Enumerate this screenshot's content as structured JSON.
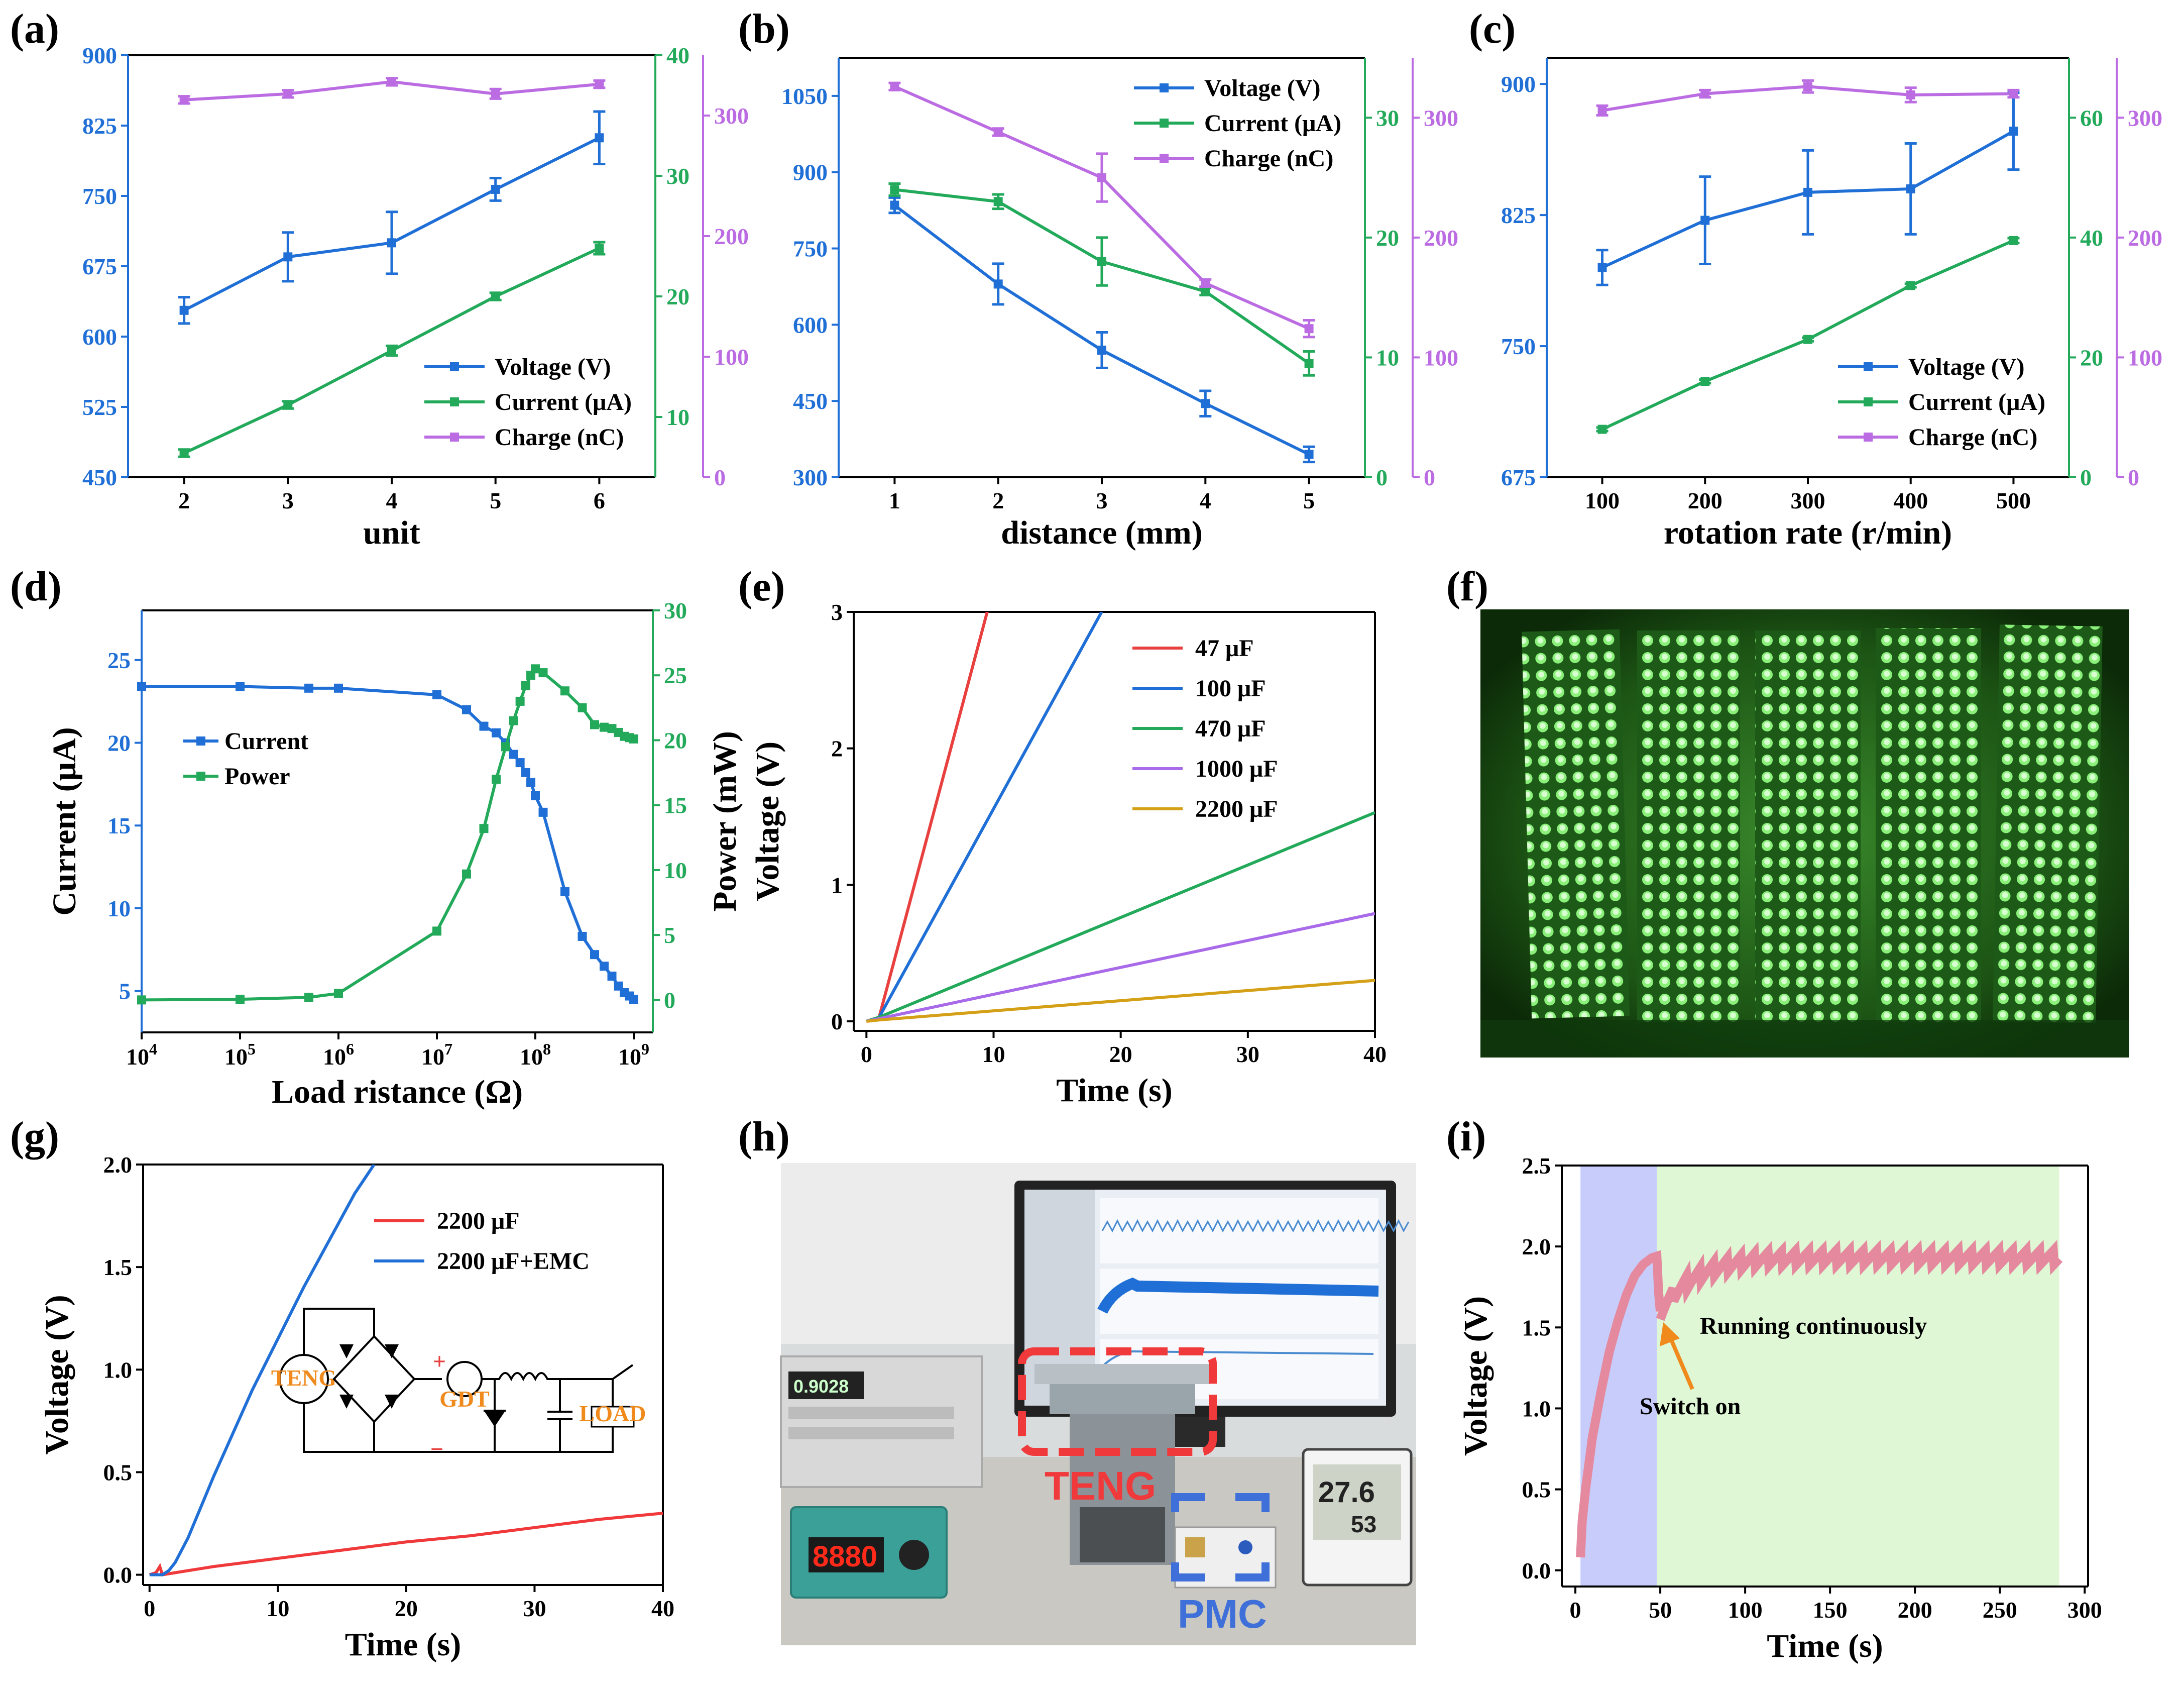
{
  "colors": {
    "voltage": "#1f6fd6",
    "current": "#22a95a",
    "charge": "#bb6ce2",
    "c47": "#e8403e",
    "c100": "#1f6fd6",
    "c470": "#22a95a",
    "c1000": "#a86ae8",
    "c2200": "#d4a017",
    "red": "#f0393a",
    "pink": "#e4899e",
    "shade_blue": "#c8ccfb",
    "shade_green": "#dff7d4",
    "orange": "#f08a1c"
  },
  "chart_data": [
    {
      "panel": "(a)",
      "type": "line",
      "xlabel": "unit",
      "x": [
        2,
        3,
        4,
        5,
        6
      ],
      "xticks": [
        2,
        3,
        4,
        5,
        6
      ],
      "axes": [
        {
          "side": "left",
          "min": 450,
          "max": 900,
          "ticks": [
            450,
            525,
            600,
            675,
            750,
            825,
            900
          ],
          "color": "voltage"
        },
        {
          "side": "right",
          "min": 5,
          "max": 40,
          "ticks": [
            10,
            20,
            30,
            40
          ],
          "color": "current"
        },
        {
          "side": "right2",
          "min": 0,
          "max": 350,
          "ticks": [
            0,
            100,
            200,
            300
          ],
          "color": "charge"
        }
      ],
      "series": [
        {
          "name": "Voltage (V)",
          "axis": 0,
          "color": "voltage",
          "values": [
            628,
            685,
            700,
            757,
            812
          ],
          "errors": [
            14,
            26,
            33,
            12,
            28
          ]
        },
        {
          "name": "Current (μA)",
          "axis": 1,
          "color": "current",
          "values": [
            7.0,
            11.0,
            15.5,
            20.0,
            24.0
          ],
          "errors": [
            0.3,
            0.3,
            0.4,
            0.3,
            0.5
          ]
        },
        {
          "name": "Charge (nC)",
          "axis": 2,
          "color": "charge",
          "values": [
            313,
            318,
            328,
            318,
            326
          ],
          "errors": [
            3,
            3,
            3,
            4,
            3
          ]
        }
      ],
      "legend": "bottom-right"
    },
    {
      "panel": "(b)",
      "type": "line",
      "xlabel": "distance (mm)",
      "x": [
        1,
        2,
        3,
        4,
        5
      ],
      "xticks": [
        1,
        2,
        3,
        4,
        5
      ],
      "axes": [
        {
          "side": "left",
          "min": 300,
          "max": 1125,
          "ticks": [
            300,
            450,
            600,
            750,
            900,
            1050
          ],
          "color": "voltage"
        },
        {
          "side": "right",
          "min": 0,
          "max": 35,
          "ticks": [
            0,
            10,
            20,
            30
          ],
          "color": "current"
        },
        {
          "side": "right2",
          "min": 0,
          "max": 350,
          "ticks": [
            0,
            100,
            200,
            300
          ],
          "color": "charge"
        }
      ],
      "series": [
        {
          "name": "Voltage (V)",
          "axis": 0,
          "color": "voltage",
          "values": [
            835,
            680,
            550,
            445,
            345
          ],
          "errors": [
            15,
            40,
            35,
            25,
            15
          ]
        },
        {
          "name": "Current (μA)",
          "axis": 1,
          "color": "current",
          "values": [
            24.0,
            23.0,
            18.0,
            15.5,
            9.5
          ],
          "errors": [
            0.5,
            0.6,
            2.0,
            0.3,
            1.0
          ]
        },
        {
          "name": "Charge (nC)",
          "axis": 2,
          "color": "charge",
          "values": [
            326,
            288,
            250,
            162,
            124
          ],
          "errors": [
            3,
            3,
            20,
            3,
            7
          ]
        }
      ],
      "legend": "top-right"
    },
    {
      "panel": "(c)",
      "type": "line",
      "xlabel": "rotation rate (r/min)",
      "x": [
        100,
        200,
        300,
        400,
        500
      ],
      "xticks": [
        100,
        200,
        300,
        400,
        500
      ],
      "axes": [
        {
          "side": "left",
          "min": 675,
          "max": 915,
          "ticks": [
            675,
            750,
            825,
            900
          ],
          "color": "voltage"
        },
        {
          "side": "right",
          "min": 0,
          "max": 70,
          "ticks": [
            0,
            20,
            40,
            60
          ],
          "color": "current"
        },
        {
          "side": "right2",
          "min": 0,
          "max": 350,
          "ticks": [
            0,
            100,
            200,
            300
          ],
          "color": "charge"
        }
      ],
      "series": [
        {
          "name": "Voltage (V)",
          "axis": 0,
          "color": "voltage",
          "values": [
            795,
            822,
            838,
            840,
            873
          ],
          "errors": [
            10,
            25,
            24,
            26,
            22
          ]
        },
        {
          "name": "Current (μA)",
          "axis": 1,
          "color": "current",
          "values": [
            8,
            16,
            23,
            32,
            39.5
          ],
          "errors": [
            0.3,
            0.3,
            0.3,
            0.3,
            0.4
          ]
        },
        {
          "name": "Charge (nC)",
          "axis": 2,
          "color": "charge",
          "values": [
            306,
            320,
            326,
            319,
            320
          ],
          "errors": [
            4,
            3,
            5,
            6,
            3
          ]
        }
      ],
      "legend": "bottom-right"
    },
    {
      "panel": "(d)",
      "type": "line",
      "xlabel": "Load ristance (Ω)",
      "xscale": "log",
      "xticks_exp": [
        4,
        5,
        6,
        7,
        8,
        9
      ],
      "axes": [
        {
          "side": "left",
          "label": "Current (μA)",
          "min": 2.5,
          "max": 28,
          "ticks": [
            5,
            10,
            15,
            20,
            25
          ],
          "color": "#000000"
        },
        {
          "side": "right",
          "label": "Power (mW)",
          "min": -2.5,
          "max": 30,
          "ticks": [
            0,
            5,
            10,
            15,
            20,
            25,
            30
          ],
          "color": "current"
        }
      ],
      "series": [
        {
          "name": "Current",
          "axis": 0,
          "color": "voltage",
          "x": [
            10000.0,
            100000.0,
            500000.0,
            1000000.0,
            10000000.0,
            20000000.0,
            30000000.0,
            40000000.0,
            50000000.0,
            60000000.0,
            70000000.0,
            80000000.0,
            90000000.0,
            100000000.0,
            120000000.0,
            200000000.0,
            300000000.0,
            400000000.0,
            500000000.0,
            600000000.0,
            700000000.0,
            800000000.0,
            900000000.0,
            1000000000.0
          ],
          "values": [
            23.4,
            23.4,
            23.3,
            23.3,
            22.9,
            22.0,
            21.0,
            20.6,
            20.0,
            19.3,
            18.8,
            18.2,
            17.6,
            16.8,
            15.8,
            11.0,
            8.3,
            7.2,
            6.5,
            5.9,
            5.3,
            4.9,
            4.7,
            4.5
          ]
        },
        {
          "name": "Power",
          "axis": 1,
          "color": "current",
          "x": [
            10000.0,
            100000.0,
            500000.0,
            1000000.0,
            10000000.0,
            20000000.0,
            30000000.0,
            40000000.0,
            50000000.0,
            60000000.0,
            70000000.0,
            80000000.0,
            90000000.0,
            100000000.0,
            120000000.0,
            200000000.0,
            300000000.0,
            400000000.0,
            500000000.0,
            600000000.0,
            700000000.0,
            800000000.0,
            900000000.0,
            1000000000.0
          ],
          "values": [
            0.0,
            0.05,
            0.2,
            0.5,
            5.3,
            9.7,
            13.2,
            17.0,
            19.5,
            21.5,
            23.0,
            24.2,
            25.0,
            25.5,
            25.2,
            23.8,
            22.5,
            21.2,
            21.0,
            20.9,
            20.6,
            20.3,
            20.2,
            20.1
          ]
        }
      ],
      "legend": "top-left"
    },
    {
      "panel": "(e)",
      "type": "line",
      "xlabel": "Time (s)",
      "ylabel": "Voltage (V)",
      "xlim": [
        -1,
        40
      ],
      "ylim": [
        -0.07,
        3
      ],
      "xticks": [
        0,
        10,
        20,
        30,
        40
      ],
      "yticks": [
        0,
        1,
        2,
        3
      ],
      "series": [
        {
          "name": "47 μF",
          "color": "c47",
          "x": [
            0,
            1,
            9.5
          ],
          "values": [
            0,
            0.03,
            3.0
          ]
        },
        {
          "name": "100 μF",
          "color": "c100",
          "x": [
            0,
            1,
            18.5
          ],
          "values": [
            0,
            0.03,
            3.0
          ]
        },
        {
          "name": "470 μF",
          "color": "c470",
          "x": [
            0,
            1,
            40
          ],
          "values": [
            0,
            0.03,
            1.53
          ]
        },
        {
          "name": "1000 μF",
          "color": "c1000",
          "x": [
            0,
            1,
            40
          ],
          "values": [
            0,
            0.02,
            0.79
          ]
        },
        {
          "name": "2200 μF",
          "color": "c2200",
          "x": [
            0,
            1,
            40
          ],
          "values": [
            0,
            0.01,
            0.3
          ]
        }
      ],
      "legend": "top-right"
    },
    {
      "panel": "(g)",
      "type": "line",
      "xlabel": "Time (s)",
      "ylabel": "Voltage (V)",
      "xlim": [
        -0.5,
        40
      ],
      "ylim": [
        -0.05,
        2
      ],
      "xticks": [
        0,
        10,
        20,
        30,
        40
      ],
      "yticks": [
        0.0,
        0.5,
        1.0,
        1.5,
        2.0
      ],
      "series": [
        {
          "name": "2200 μF",
          "color": "red",
          "x": [
            0,
            0.5,
            0.8,
            1,
            5,
            10,
            15,
            20,
            25,
            30,
            35,
            40
          ],
          "values": [
            0,
            0.01,
            0.04,
            0.0,
            0.04,
            0.08,
            0.12,
            0.16,
            0.19,
            0.23,
            0.27,
            0.3
          ]
        },
        {
          "name": "2200 μF+EMC",
          "color": "voltage",
          "x": [
            0,
            1,
            1.5,
            2,
            3,
            4,
            5,
            6,
            8,
            10,
            12,
            14,
            16,
            17.5
          ],
          "values": [
            0,
            0.0,
            0.02,
            0.06,
            0.18,
            0.33,
            0.48,
            0.62,
            0.9,
            1.15,
            1.4,
            1.63,
            1.86,
            2.0
          ]
        }
      ],
      "legend": "top-right",
      "inset": {
        "teng": "TENG",
        "gdt": "GDT",
        "load": "LOAD",
        "plus": "+",
        "minus": "−"
      }
    },
    {
      "panel": "(i)",
      "type": "line",
      "xlabel": "Time (s)",
      "ylabel": "Voltage (V)",
      "xlim": [
        -8,
        302
      ],
      "ylim": [
        -0.1,
        2.5
      ],
      "xticks": [
        0,
        50,
        100,
        150,
        200,
        250,
        300
      ],
      "yticks": [
        0.0,
        0.5,
        1.0,
        1.5,
        2.0,
        2.5
      ],
      "shaded_regions": [
        {
          "from": 3,
          "to": 48,
          "color": "shade_blue"
        },
        {
          "from": 48,
          "to": 285,
          "color": "shade_green"
        }
      ],
      "series": [
        {
          "name": "Voltage",
          "color": "pink",
          "x": [
            3,
            4,
            6,
            10,
            15,
            20,
            25,
            30,
            35,
            40,
            45,
            48,
            49,
            50
          ],
          "values": [
            0.08,
            0.3,
            0.5,
            0.82,
            1.1,
            1.35,
            1.54,
            1.7,
            1.82,
            1.89,
            1.93,
            1.94,
            1.72,
            1.6
          ]
        }
      ],
      "annotations": {
        "running": "Running continuously",
        "switch": "Switch on"
      }
    }
  ],
  "panels": {
    "a": "(a)",
    "b": "(b)",
    "c": "(c)",
    "d": "(d)",
    "e": "(e)",
    "f": "(f)",
    "g": "(g)",
    "h": "(h)",
    "i": "(i)"
  },
  "photo_h": {
    "teng": "TENG",
    "pmc": "PMC",
    "meter_display": "0.9028",
    "controller_display": "8880",
    "thermometer_display": "27.6",
    "thermometer_sub": "53"
  }
}
